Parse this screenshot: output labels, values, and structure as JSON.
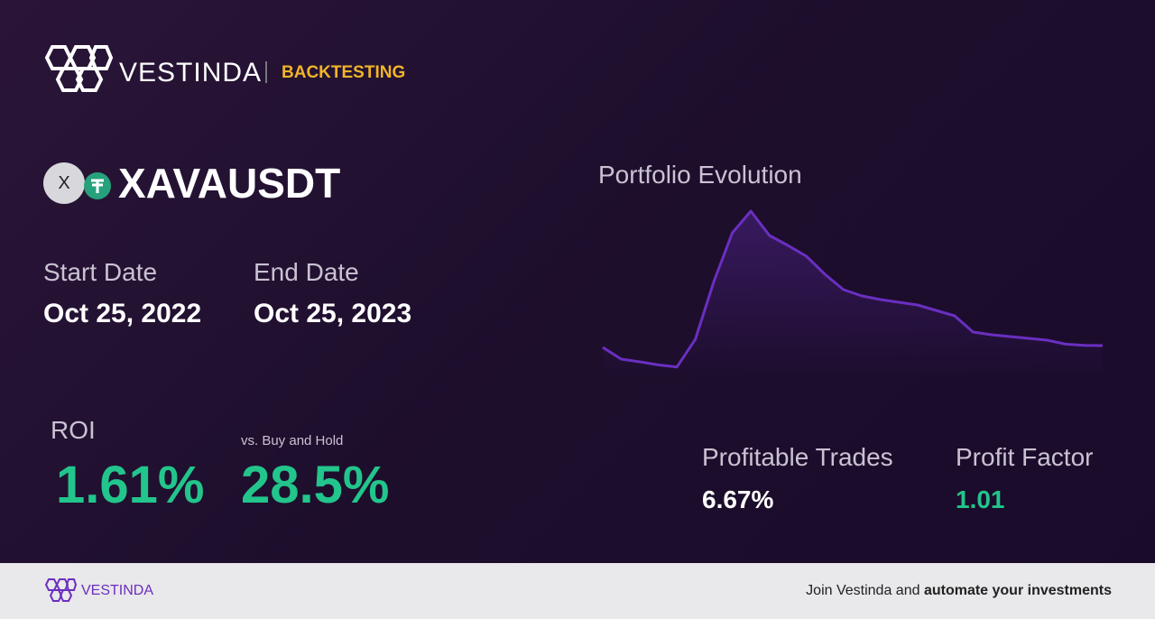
{
  "header": {
    "brand": "VESTINDA",
    "section": "BACKTESTING"
  },
  "pair": {
    "icon_letter": "X",
    "symbol": "XAVAUSDT"
  },
  "dates": {
    "start_label": "Start Date",
    "start": "Oct 25, 2022",
    "end_label": "End Date",
    "end": "Oct 25, 2023"
  },
  "roi": {
    "label": "ROI",
    "value": "1.61%",
    "compare_label": "vs. Buy and Hold",
    "compare_value": "28.5%"
  },
  "stats": {
    "trades_label": "Profitable Trades",
    "trades_value": "6.67%",
    "factor_label": "Profit Factor",
    "factor_value": "1.01"
  },
  "chart_data": {
    "type": "line",
    "title": "Portfolio Evolution",
    "color": "#6a2fc0",
    "ylim": [
      0,
      100
    ],
    "values": [
      17.5,
      11,
      9.5,
      7.8,
      6.6,
      22,
      54,
      81,
      93,
      79.5,
      74,
      68,
      58,
      49.5,
      46,
      44,
      42.5,
      41,
      38,
      35,
      26,
      24.5,
      23.5,
      22.5,
      21.5,
      19.3,
      18.6,
      18.5
    ]
  },
  "footer": {
    "brand": "VESTINDA",
    "cta_start": "Join Vestinda and ",
    "cta_bold": "automate your investments"
  }
}
